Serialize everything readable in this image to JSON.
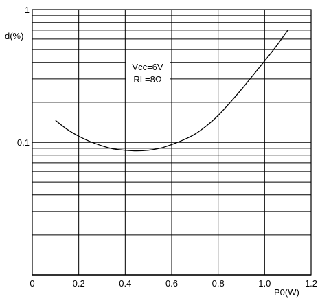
{
  "chart_data": {
    "type": "line",
    "ylabel": "d(%)",
    "xlabel": "P0(W)",
    "xlim": [
      0,
      1.2
    ],
    "ylim": [
      0.01,
      1
    ],
    "yscale": "log",
    "grid": true,
    "x_ticks": [
      "0",
      "0.2",
      "0.4",
      "0.6",
      "0.8",
      "1.0",
      "1.2"
    ],
    "y_ticks": [
      "1",
      "0.1"
    ],
    "annotation": {
      "line1": "Vcc=6V",
      "line2": "RL=8Ω"
    },
    "series": [
      {
        "x": [
          0.1,
          0.15,
          0.2,
          0.25,
          0.3,
          0.35,
          0.4,
          0.45,
          0.5,
          0.55,
          0.6,
          0.65,
          0.7,
          0.75,
          0.8,
          0.85,
          0.9,
          0.95,
          1.0,
          1.05,
          1.1
        ],
        "values": [
          0.146,
          0.125,
          0.111,
          0.101,
          0.094,
          0.089,
          0.087,
          0.086,
          0.087,
          0.09,
          0.096,
          0.104,
          0.115,
          0.133,
          0.159,
          0.198,
          0.25,
          0.32,
          0.41,
          0.53,
          0.7
        ]
      }
    ]
  }
}
